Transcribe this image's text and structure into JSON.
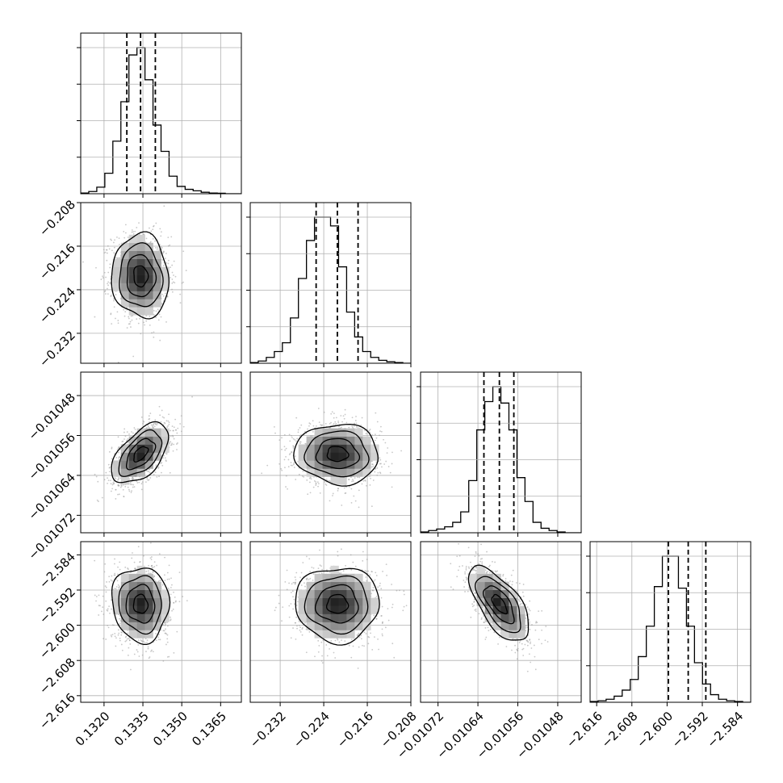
{
  "chart_data": {
    "type": "corner",
    "parameters": [
      {
        "range": [
          0.1311,
          0.1373
        ],
        "ticks": [
          0.132,
          0.1335,
          0.135,
          0.1365
        ],
        "tick_labels": [
          "0.1320",
          "0.1335",
          "0.1350",
          "0.1365"
        ],
        "quantiles": [
          0.13288,
          0.13341,
          0.13398
        ],
        "histogram": [
          0.5,
          1.5,
          4.5,
          14,
          36,
          63,
          95,
          100,
          78,
          47,
          29,
          12,
          5,
          3,
          2,
          1,
          0.5,
          0.3,
          0,
          0
        ]
      },
      {
        "range": [
          -0.2375,
          -0.208
        ],
        "ticks": [
          -0.232,
          -0.224,
          -0.216,
          -0.208
        ],
        "tick_labels": [
          "−0.232",
          "−0.224",
          "−0.216",
          "−0.208"
        ],
        "quantiles": [
          -0.2254,
          -0.2215,
          -0.2177
        ],
        "histogram": [
          0.5,
          1.5,
          4,
          8,
          14,
          31,
          58,
          84,
          100,
          100,
          94,
          66,
          35,
          18,
          8,
          4,
          2,
          1,
          0.5,
          0
        ]
      },
      {
        "range": [
          -0.010755,
          -0.010433
        ],
        "ticks": [
          -0.01072,
          -0.01064,
          -0.01056,
          -0.01048
        ],
        "tick_labels": [
          "−0.01072",
          "−0.01064",
          "−0.01056",
          "−0.01048"
        ],
        "quantiles": [
          -0.010628,
          -0.010597,
          -0.010568
        ],
        "histogram": [
          0.5,
          1.5,
          2.5,
          4,
          7,
          14,
          35,
          69,
          88,
          98,
          87,
          69,
          37,
          21,
          7,
          3,
          1.5,
          0.5,
          0,
          0
        ]
      },
      {
        "range": [
          -2.6175,
          -2.581
        ],
        "ticks": [
          -2.616,
          -2.608,
          -2.6,
          -2.592,
          -2.584
        ],
        "tick_labels": [
          "−2.616",
          "−2.608",
          "−2.600",
          "−2.592",
          "−2.584"
        ],
        "quantiles": [
          -2.5997,
          -2.5952,
          -2.5912
        ],
        "histogram": [
          0.5,
          1,
          2,
          4,
          8,
          15,
          30,
          50,
          76,
          96,
          96,
          75,
          50,
          26,
          12,
          5,
          2,
          1,
          0.5,
          0
        ]
      }
    ],
    "correlations": [
      {
        "row": 1,
        "col": 0,
        "rho": -0.05
      },
      {
        "row": 2,
        "col": 0,
        "rho": 0.55
      },
      {
        "row": 2,
        "col": 1,
        "rho": -0.05
      },
      {
        "row": 3,
        "col": 0,
        "rho": -0.05
      },
      {
        "row": 3,
        "col": 1,
        "rho": 0.0
      },
      {
        "row": 3,
        "col": 2,
        "rho": -0.65
      }
    ],
    "contour_levels": [
      0.5,
      1.0,
      1.5,
      2.0
    ],
    "grid": true,
    "hist_style": "step",
    "quantile_style": "dashed",
    "colors": {
      "line": "#000000",
      "points": "#9a9a9a",
      "grid": "#b0b0b0",
      "frame": "#000000"
    }
  }
}
